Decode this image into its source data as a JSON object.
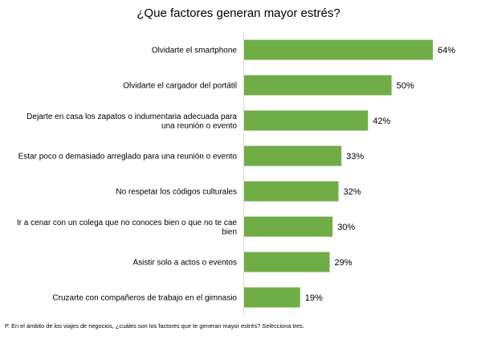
{
  "chart_data": {
    "type": "bar",
    "orientation": "horizontal",
    "title": "¿Que factores generan mayor estrés?",
    "categories": [
      "Olvidarte el smartphone",
      "Olvidarte el cargador del portátil",
      "Dejarte en casa los zapatos o indumentaria adecuada para una reunión o evento",
      "Estar poco o demasiado arreglado para una reunión o evento",
      "No respetar los códigos culturales",
      "Ir a cenar con un colega que no conoces bien o que no te cae bien",
      "Asistir solo a actos o eventos",
      "Cruzarte con compañeros de trabajo en el gimnasio"
    ],
    "category_lines": [
      [
        "Olvidarte el smartphone"
      ],
      [
        "Olvidarte el cargador del portátil"
      ],
      [
        "Dejarte en casa los zapatos o indumentaria adecuada para",
        "una reunión o evento"
      ],
      [
        "Estar poco o demasiado arreglado para una reunión o evento"
      ],
      [
        "No respetar los códigos culturales"
      ],
      [
        "Ir a cenar con un colega que no conoces bien o que no te cae",
        "bien"
      ],
      [
        "Asistir solo a actos o eventos"
      ],
      [
        "Cruzarte con compañeros de trabajo en el gimnasio"
      ]
    ],
    "values": [
      64,
      50,
      42,
      33,
      32,
      30,
      29,
      19
    ],
    "value_labels": [
      "64%",
      "50%",
      "42%",
      "33%",
      "32%",
      "30%",
      "29%",
      "19%"
    ],
    "unit": "%",
    "xlim": [
      0,
      64
    ],
    "grid": false,
    "legend": "none",
    "bar_color": "#70ad47"
  },
  "footnote": "P. En el ámbito de los viajes de negocios, ¿cuáles son los factores que te generan mayor estrés? Selecciona tres."
}
